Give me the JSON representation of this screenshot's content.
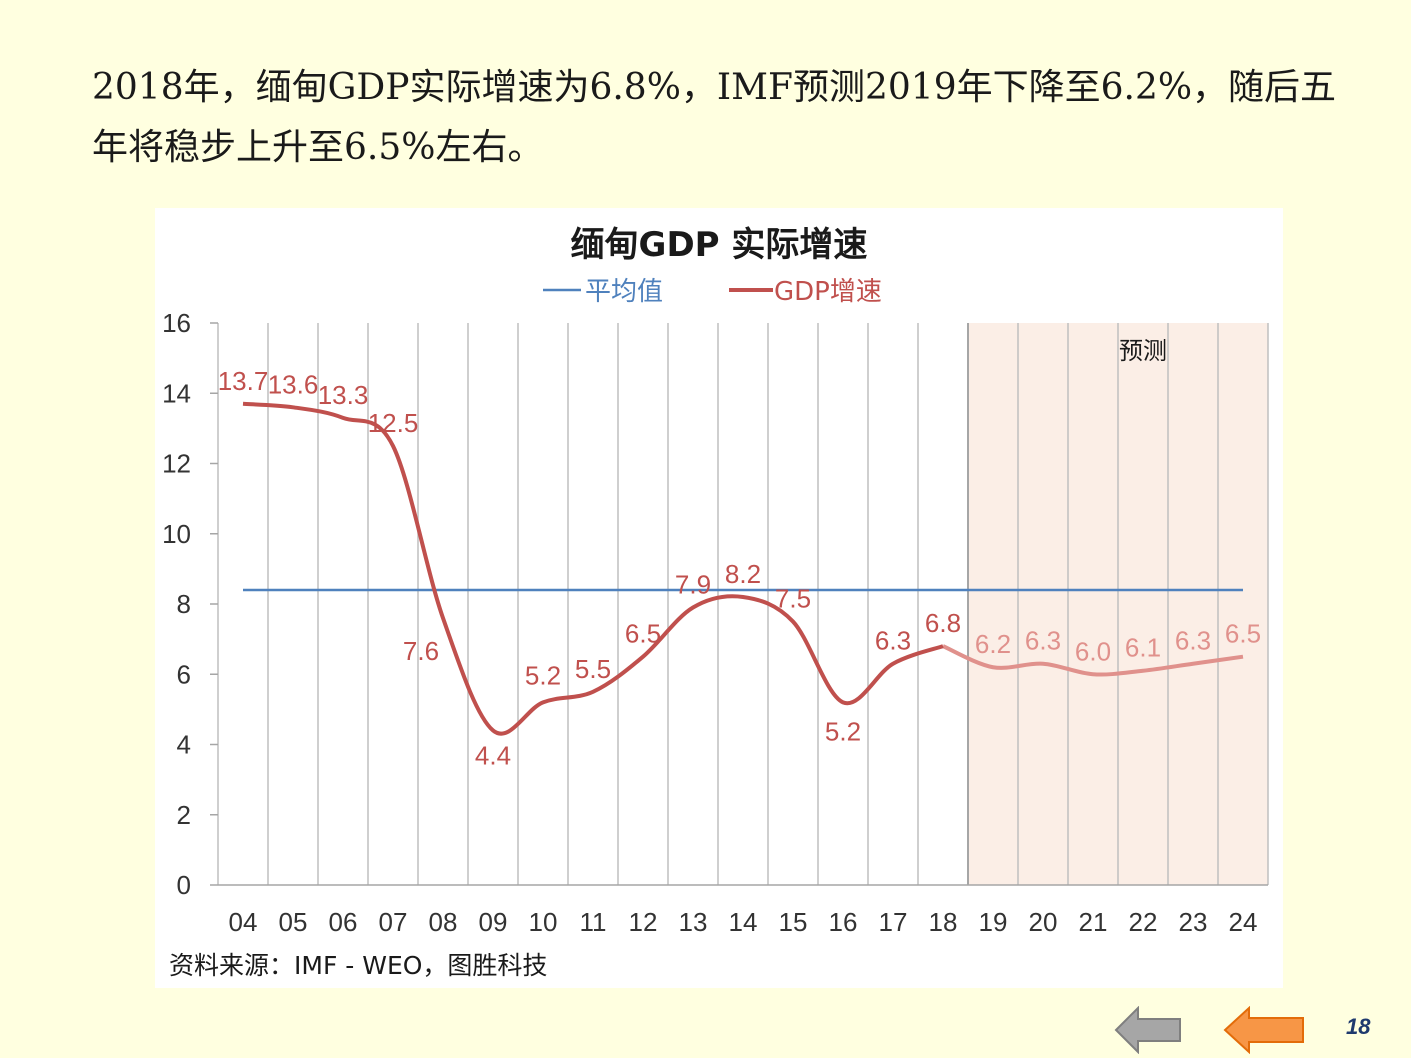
{
  "slide": {
    "heading": "2018年，缅甸GDP实际增速为6.8%，IMF预测2019年下降至6.2%，随后五年将稳步上升至6.5%左右。",
    "page_number": "18"
  },
  "navigation": {
    "back_icon": "left-arrow-gray",
    "prev_icon": "left-arrow-orange"
  },
  "colors": {
    "background": "#FFFFE0",
    "actual_line": "#C0504D",
    "forecast_line": "#E0918C",
    "average_line": "#4F81BD",
    "forecast_shade": "#FBEEE6",
    "grid": "#BFBFBF"
  },
  "chart_data": {
    "type": "line",
    "title": "缅甸GDP 实际增速",
    "legend": [
      {
        "label": "平均值",
        "series": "average"
      },
      {
        "label": "GDP增速",
        "series": "gdp"
      }
    ],
    "legend_placement": "top-center",
    "categories": [
      "04",
      "05",
      "06",
      "07",
      "08",
      "09",
      "10",
      "11",
      "12",
      "13",
      "14",
      "15",
      "16",
      "17",
      "18",
      "19",
      "20",
      "21",
      "22",
      "23",
      "24"
    ],
    "series": [
      {
        "name": "GDP增速",
        "values": [
          13.7,
          13.6,
          13.3,
          12.5,
          7.6,
          4.4,
          5.2,
          5.5,
          6.5,
          7.9,
          8.2,
          7.5,
          5.2,
          6.3,
          6.8,
          6.2,
          6.3,
          6.0,
          6.1,
          6.3,
          6.5
        ],
        "labels": [
          "13.7",
          "13.6",
          "13.3",
          "12.5",
          "7.6",
          "4.4",
          "5.2",
          "5.5",
          "6.5",
          "7.9",
          "8.2",
          "7.5",
          "5.2",
          "6.3",
          "6.8",
          "6.2",
          "6.3",
          "6.0",
          "6.1",
          "6.3",
          "6.5"
        ]
      },
      {
        "name": "平均值",
        "value": 8.4
      }
    ],
    "forecast_start_index": 15,
    "forecast_label": "预测",
    "ylim": [
      0,
      16
    ],
    "yticks": [
      "0",
      "2",
      "4",
      "6",
      "8",
      "10",
      "12",
      "14",
      "16"
    ],
    "grid": true,
    "source": "资料来源：IMF - WEO，图胜科技"
  }
}
